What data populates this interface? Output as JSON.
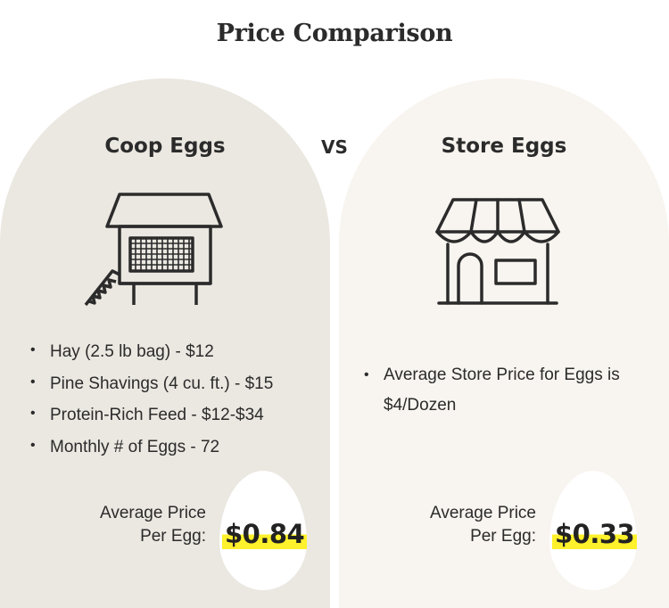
{
  "title": "Price Comparison",
  "vs_label": "VS",
  "left": {
    "heading": "Coop Eggs",
    "icon": "chicken-coop-icon",
    "bullets": [
      "Hay (2.5 lb bag) - $12",
      "Pine Shavings (4 cu. ft.) - $15",
      "Protein-Rich Feed - $12-$34",
      "Monthly # of Eggs - 72"
    ],
    "avg_line1": "Average Price",
    "avg_line2": "Per Egg:",
    "price": "$0.84"
  },
  "right": {
    "heading": "Store Eggs",
    "icon": "storefront-icon",
    "bullets": [
      "Average Store Price for Eggs is $4/Dozen"
    ],
    "avg_line1": "Average Price",
    "avg_line2": "Per Egg:",
    "price": "$0.33"
  },
  "colors": {
    "left_panel": "#ebe7e1",
    "right_panel": "#f8f4ef",
    "highlight": "#fff12b",
    "text": "#2b2b2b"
  }
}
